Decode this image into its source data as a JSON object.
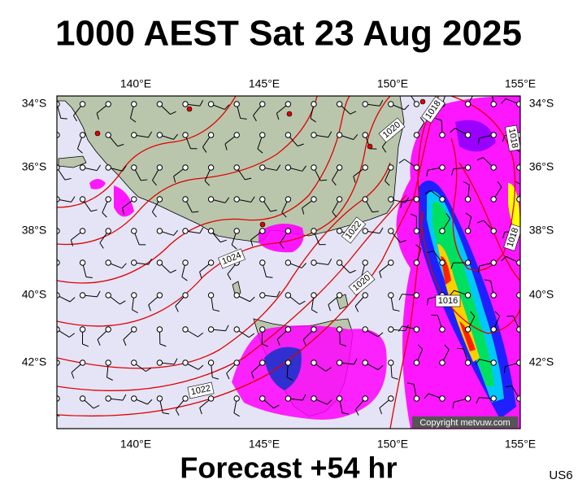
{
  "header": {
    "title": "1000 AEST Sat 23 Aug 2025"
  },
  "map": {
    "lon_labels": [
      "140°E",
      "145°E",
      "150°E",
      "155°E"
    ],
    "lat_labels": [
      "34°S",
      "36°S",
      "38°S",
      "40°S",
      "42°S"
    ],
    "isobar_labels": [
      "1024",
      "1022",
      "1022",
      "1020",
      "1020",
      "1018",
      "1018",
      "1018",
      "1016"
    ],
    "copyright": "Copyright metvuw.com"
  },
  "footer": {
    "caption": "Forecast +54 hr",
    "code": "US6"
  }
}
